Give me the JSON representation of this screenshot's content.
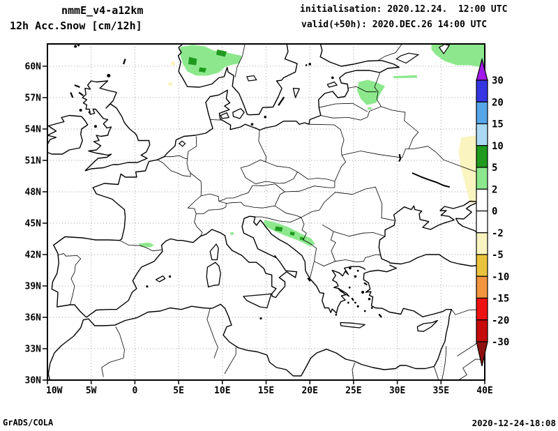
{
  "header": {
    "model": "nmmE_v4-a12km",
    "variable": "12h Acc.Snow [cm/12h]",
    "init_line": "initialisation: 2020.12.24.  12:00 UTC",
    "valid_line": "valid(+50h): 2020.DEC.26 14:00 UTC"
  },
  "footer": {
    "left": "GrADS/COLA",
    "right": "2020-12-24-18:08"
  },
  "chart_data": {
    "type": "heatmap",
    "subtype": "filled-contour-map",
    "title": "12h Acc.Snow [cm/12h]",
    "model": "nmmE_v4-a12km",
    "initialisation": "2020.12.24. 12:00 UTC",
    "valid": "+50h 2020.DEC.26 14:00 UTC",
    "projection": "latlon",
    "lon_range": [
      -10,
      40
    ],
    "lat_range": [
      30,
      62.13
    ],
    "grid": {
      "style": "dotted",
      "lon_step": 5,
      "lat_step": 3,
      "color": "#9a9a9a"
    },
    "x_ticks": [
      {
        "lon": -10,
        "label": "10W"
      },
      {
        "lon": -5,
        "label": "5W"
      },
      {
        "lon": 0,
        "label": "0"
      },
      {
        "lon": 5,
        "label": "5E"
      },
      {
        "lon": 10,
        "label": "10E"
      },
      {
        "lon": 15,
        "label": "15E"
      },
      {
        "lon": 20,
        "label": "20E"
      },
      {
        "lon": 25,
        "label": "25E"
      },
      {
        "lon": 30,
        "label": "30E"
      },
      {
        "lon": 35,
        "label": "35E"
      },
      {
        "lon": 40,
        "label": "40E"
      }
    ],
    "y_ticks": [
      {
        "lat": 30,
        "label": "30N"
      },
      {
        "lat": 33,
        "label": "33N"
      },
      {
        "lat": 36,
        "label": "36N"
      },
      {
        "lat": 39,
        "label": "39N"
      },
      {
        "lat": 42,
        "label": "42N"
      },
      {
        "lat": 45,
        "label": "45N"
      },
      {
        "lat": 48,
        "label": "48N"
      },
      {
        "lat": 51,
        "label": "51N"
      },
      {
        "lat": 54,
        "label": "54N"
      },
      {
        "lat": 57,
        "label": "57N"
      },
      {
        "lat": 60,
        "label": "60N"
      }
    ],
    "colorbar": {
      "position": "right",
      "labels": [
        "30",
        "20",
        "15",
        "10",
        "5",
        "2",
        "0",
        "-2",
        "-5",
        "-10",
        "-15",
        "-20",
        "-30"
      ],
      "segments": [
        {
          "range": "> 30",
          "color": "#a21ae8"
        },
        {
          "range": "20 to 30",
          "color": "#3535e2"
        },
        {
          "range": "15 to 20",
          "color": "#57a6ea"
        },
        {
          "range": "10 to 15",
          "color": "#abd9f5"
        },
        {
          "range": "5 to 10",
          "color": "#1f9a1f"
        },
        {
          "range": "2 to 5",
          "color": "#8de88d"
        },
        {
          "range": "0 to 2",
          "color": "#ffffff"
        },
        {
          "range": "-2 to 0",
          "color": "#ffffff"
        },
        {
          "range": "-5 to -2",
          "color": "#faf5c0"
        },
        {
          "range": "-10 to -5",
          "color": "#eac33d"
        },
        {
          "range": "-15 to -10",
          "color": "#f2953e"
        },
        {
          "range": "-20 to -15",
          "color": "#ee1212"
        },
        {
          "range": "-30 to -20",
          "color": "#c60b0b"
        },
        {
          "range": "< -30",
          "color": "#8e0f0f"
        }
      ]
    },
    "snow_patches": [
      {
        "name": "southern-norway",
        "range": "2 to 5",
        "color": "#8de88d",
        "points": [
          [
            5.2,
            61.85
          ],
          [
            6.6,
            62.05
          ],
          [
            8.0,
            61.9
          ],
          [
            9.0,
            61.5
          ],
          [
            10.6,
            61.3
          ],
          [
            12.2,
            61.0
          ],
          [
            12.0,
            60.3
          ],
          [
            10.4,
            60.0
          ],
          [
            9.6,
            59.4
          ],
          [
            8.3,
            59.1
          ],
          [
            7.0,
            59.1
          ],
          [
            6.0,
            59.5
          ],
          [
            5.5,
            60.2
          ],
          [
            5.2,
            61.0
          ]
        ]
      },
      {
        "name": "norway-core-1",
        "range": "5 to 10",
        "color": "#1f9a1f",
        "points": [
          [
            6.2,
            60.9
          ],
          [
            7.1,
            60.7
          ],
          [
            7.0,
            60.1
          ],
          [
            6.1,
            60.2
          ]
        ]
      },
      {
        "name": "norway-core-2",
        "range": "5 to 10",
        "color": "#1f9a1f",
        "points": [
          [
            9.4,
            61.6
          ],
          [
            10.5,
            61.4
          ],
          [
            10.3,
            60.9
          ],
          [
            9.3,
            61.1
          ]
        ]
      },
      {
        "name": "norway-core-3",
        "range": "5 to 10",
        "color": "#1f9a1f",
        "points": [
          [
            7.4,
            59.9
          ],
          [
            8.2,
            59.8
          ],
          [
            8.0,
            59.4
          ],
          [
            7.3,
            59.5
          ]
        ]
      },
      {
        "name": "nw-russia",
        "range": "2 to 5",
        "color": "#8de88d",
        "points": [
          [
            33.9,
            62.13
          ],
          [
            40.3,
            62.13
          ],
          [
            40.3,
            59.8
          ],
          [
            38.3,
            60.1
          ],
          [
            36.8,
            60.1
          ],
          [
            35.4,
            60.5
          ],
          [
            34.4,
            61.1
          ],
          [
            33.9,
            61.6
          ]
        ]
      },
      {
        "name": "ilmen-streak",
        "range": "2 to 5",
        "color": "#8de88d",
        "points": [
          [
            29.5,
            59.05
          ],
          [
            32.2,
            59.15
          ],
          [
            32.3,
            58.9
          ],
          [
            29.6,
            58.85
          ]
        ]
      },
      {
        "name": "peipus-baltics",
        "range": "2 to 5",
        "color": "#8de88d",
        "points": [
          [
            25.6,
            58.5
          ],
          [
            26.6,
            58.7
          ],
          [
            27.5,
            58.5
          ],
          [
            28.6,
            58.1
          ],
          [
            28.0,
            57.3
          ],
          [
            27.6,
            56.5
          ],
          [
            26.5,
            56.3
          ],
          [
            25.8,
            56.9
          ],
          [
            25.4,
            57.7
          ]
        ]
      },
      {
        "name": "peipus-dot",
        "range": "2 to 5",
        "color": "#8de88d",
        "points": [
          [
            26.6,
            56.05
          ],
          [
            27.05,
            56.1
          ],
          [
            27.05,
            55.85
          ],
          [
            26.6,
            55.85
          ]
        ]
      },
      {
        "name": "dinaric-alps",
        "range": "2 to 5",
        "color": "#8de88d",
        "points": [
          [
            14.8,
            45.3
          ],
          [
            16.0,
            45.1
          ],
          [
            17.6,
            44.6
          ],
          [
            19.0,
            44.0
          ],
          [
            20.2,
            43.5
          ],
          [
            20.6,
            43.0
          ],
          [
            20.0,
            42.8
          ],
          [
            18.8,
            43.3
          ],
          [
            17.2,
            43.8
          ],
          [
            15.8,
            44.3
          ],
          [
            14.7,
            44.8
          ]
        ]
      },
      {
        "name": "dinaric-core-1",
        "range": "5 to 10",
        "color": "#1f9a1f",
        "points": [
          [
            16.1,
            44.7
          ],
          [
            16.9,
            44.6
          ],
          [
            16.8,
            44.2
          ],
          [
            16.0,
            44.3
          ]
        ]
      },
      {
        "name": "dinaric-core-2",
        "range": "5 to 10",
        "color": "#1f9a1f",
        "points": [
          [
            17.8,
            44.2
          ],
          [
            18.3,
            44.1
          ],
          [
            18.2,
            43.8
          ],
          [
            17.7,
            43.9
          ]
        ]
      },
      {
        "name": "dinaric-core-3",
        "range": "5 to 10",
        "color": "#1f9a1f",
        "points": [
          [
            18.9,
            43.7
          ],
          [
            19.4,
            43.6
          ],
          [
            19.3,
            43.35
          ],
          [
            18.85,
            43.45
          ]
        ]
      },
      {
        "name": "pyrenees",
        "range": "2 to 5",
        "color": "#8de88d",
        "points": [
          [
            0.4,
            43.05
          ],
          [
            1.6,
            43.15
          ],
          [
            2.2,
            42.9
          ],
          [
            1.8,
            42.7
          ],
          [
            0.7,
            42.75
          ]
        ]
      },
      {
        "name": "apennine-dot",
        "range": "2 to 5",
        "color": "#8de88d",
        "points": [
          [
            10.9,
            44.1
          ],
          [
            11.3,
            44.15
          ],
          [
            11.3,
            43.9
          ],
          [
            10.9,
            43.9
          ]
        ]
      },
      {
        "name": "east-edge-strip",
        "range": "-5 to -2",
        "color": "#faf5c0",
        "points": [
          [
            37.3,
            53.2
          ],
          [
            40.3,
            53.5
          ],
          [
            40.3,
            46.8
          ],
          [
            38.3,
            46.9
          ],
          [
            38.0,
            48.0
          ],
          [
            37.6,
            49.3
          ],
          [
            37.2,
            50.6
          ],
          [
            37.0,
            51.8
          ]
        ]
      },
      {
        "name": "norway-coast-neg-1",
        "range": "-5 to -2",
        "color": "#faf5c0",
        "points": [
          [
            4.1,
            60.4
          ],
          [
            4.6,
            60.5
          ],
          [
            4.6,
            60.1
          ],
          [
            4.1,
            60.1
          ]
        ]
      },
      {
        "name": "norway-coast-neg-2",
        "range": "-5 to -2",
        "color": "#faf5c0",
        "points": [
          [
            3.8,
            58.45
          ],
          [
            4.3,
            58.45
          ],
          [
            4.3,
            58.15
          ],
          [
            3.8,
            58.15
          ]
        ]
      }
    ]
  }
}
